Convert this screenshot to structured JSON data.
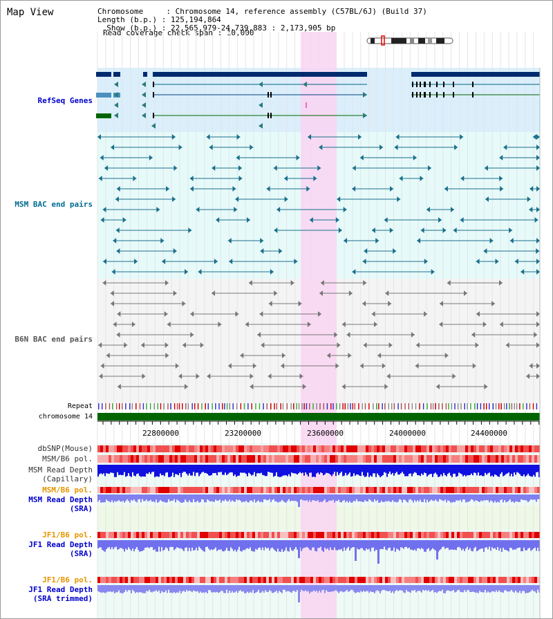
{
  "app": {
    "title": "Map View"
  },
  "header": {
    "chromosome": "Chromosome     : Chromosome 14, reference assembly (C57BL/6J) (Build 37)",
    "length": "Length (b.p.) : 125,194,864",
    "show": "  Show (b.p.) : 22,565,979-24,739,883 : 2,173,905 bp",
    "span": "Read coverage check span : 10,000"
  },
  "tracks": {
    "refseq": "RefSeq Genes",
    "msm_bac": "MSM BAC end pairs",
    "b6n_bac": "B6N BAC end pairs",
    "repeat": "Repeat",
    "chromosome": "chromosome 14",
    "dbsnp": "dbSNP(Mouse)",
    "msm_b6_pol": "MSM/B6 pol.",
    "msm_depth_cap_1": "MSM Read Depth",
    "msm_depth_cap_2": "(Capillary)",
    "msm_b6_pol_2": "MSM/B6 pol.",
    "msm_depth_sra_1": "MSM Read Depth",
    "msm_depth_sra_2": "(SRA)",
    "jf1_b6_pol": "JF1/B6 pol.",
    "jf1_depth_sra_1": "JF1 Read Depth",
    "jf1_depth_sra_2": "(SRA)",
    "jf1_b6_pol_2": "JF1/B6 pol.",
    "jf1_depth_trim_1": "JF1 Read Depth",
    "jf1_depth_trim_2": "(SRA trimmed)"
  },
  "axis": {
    "ticks": [
      "22800000",
      "23200000",
      "23600000",
      "24000000",
      "24400000"
    ]
  },
  "colors": {
    "refseq_bg": "#daeffb",
    "msm_bg": "#e6fafa",
    "b6n_bg": "#f4f4f4",
    "highlight": "#f9d5f2",
    "chrom": "#006400",
    "refseq_label": "#0000cc",
    "msm_label": "#006b8f",
    "b6n_label": "#555555",
    "pol_label": "#e69500",
    "depth_label": "#0000cc"
  }
}
